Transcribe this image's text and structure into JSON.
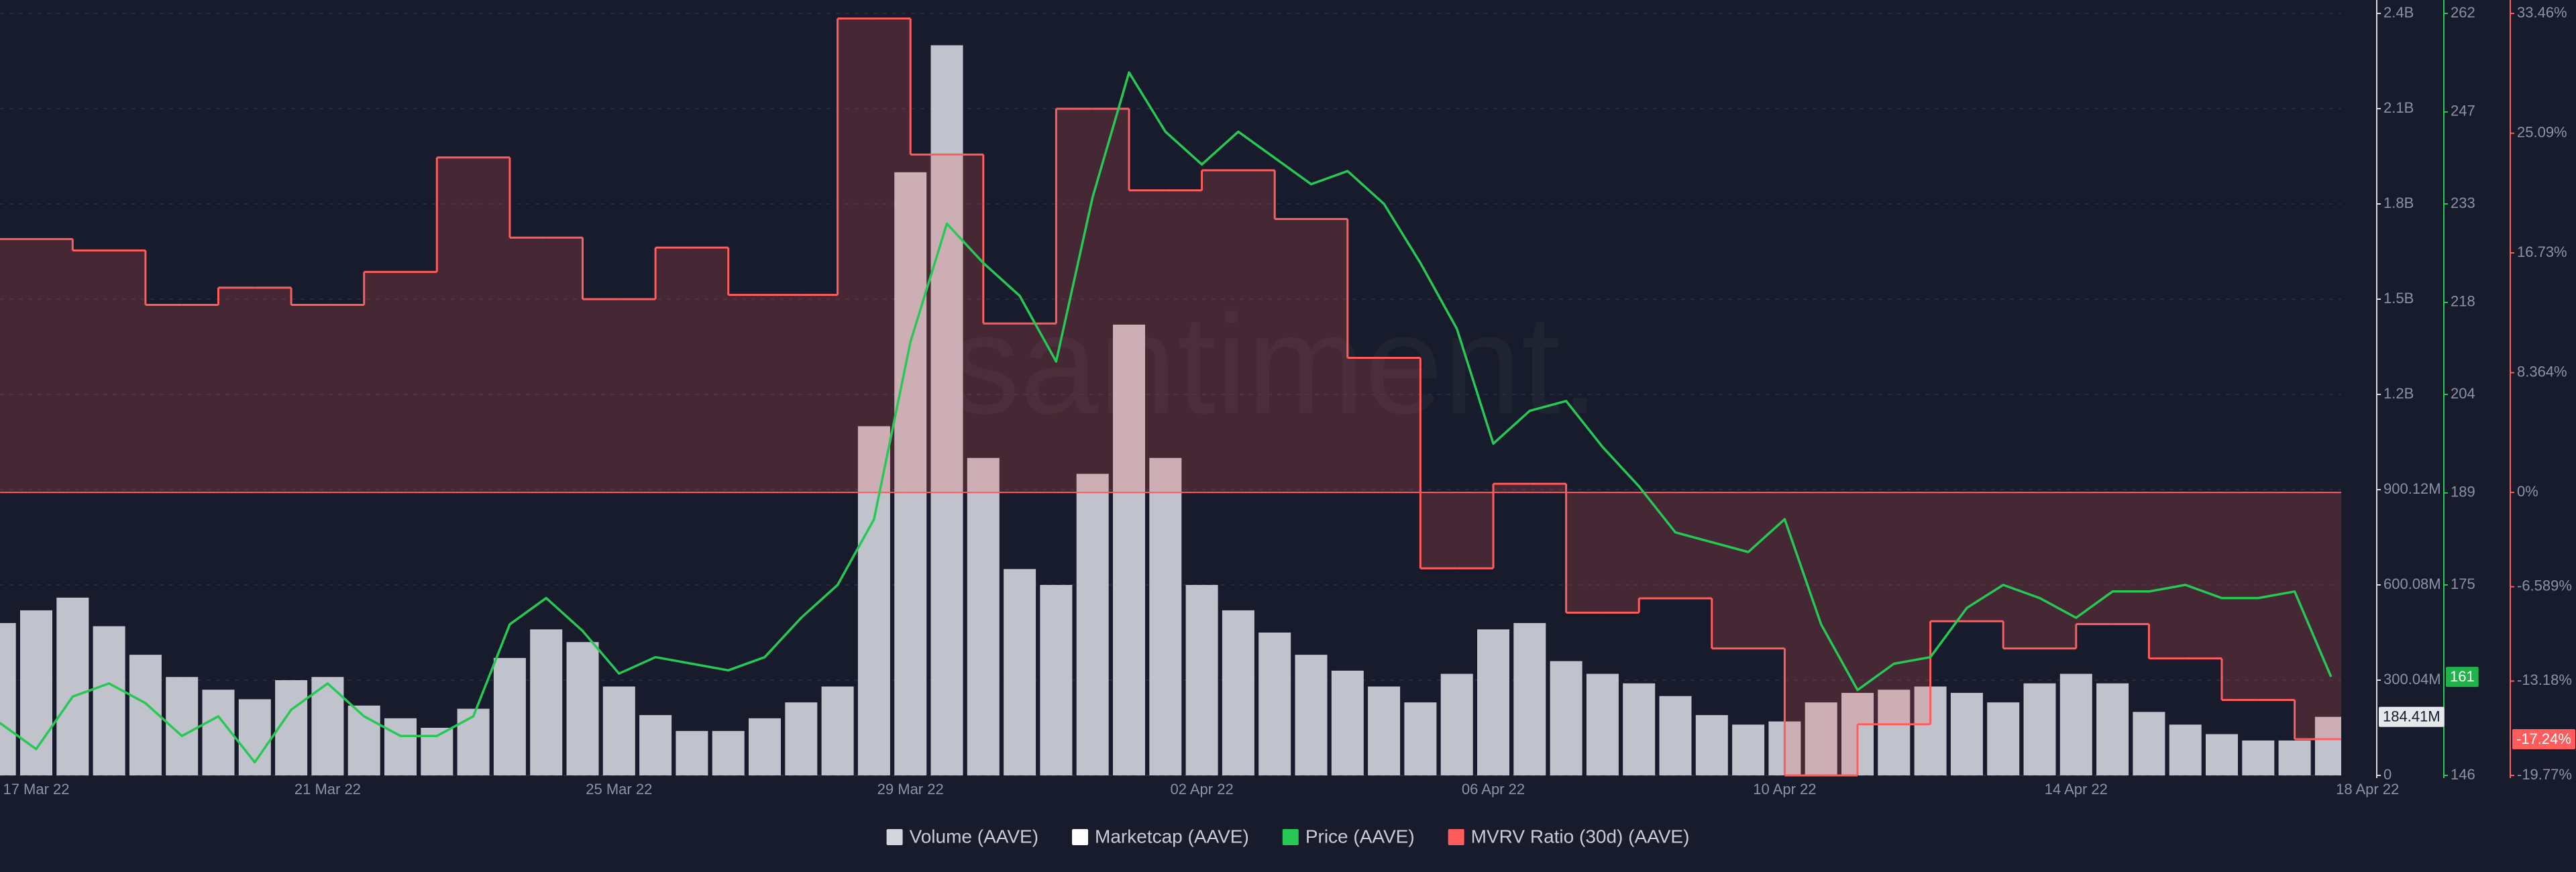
{
  "chart_data": {
    "type": "mixed",
    "watermark": "santiment.",
    "categories": [
      null,
      "17 Mar 22",
      null,
      null,
      null,
      null,
      null,
      null,
      null,
      "21 Mar 22",
      null,
      null,
      null,
      null,
      null,
      null,
      null,
      "25 Mar 22",
      null,
      null,
      null,
      null,
      null,
      null,
      null,
      "29 Mar 22",
      null,
      null,
      null,
      null,
      null,
      null,
      null,
      "02 Apr 22",
      null,
      null,
      null,
      null,
      null,
      null,
      null,
      "06 Apr 22",
      null,
      null,
      null,
      null,
      null,
      null,
      null,
      "10 Apr 22",
      null,
      null,
      null,
      null,
      null,
      null,
      null,
      "14 Apr 22",
      null,
      null,
      null,
      null,
      null,
      null,
      null,
      "18 Apr 22"
    ],
    "series": [
      {
        "name": "Volume (AAVE)",
        "type": "bar",
        "axis": "y",
        "color": "#d4d6de",
        "last_label": "184.41M",
        "values": [
          480000000,
          520000000,
          560000000,
          470000000,
          380000000,
          310000000,
          270000000,
          240000000,
          300000000,
          310000000,
          220000000,
          180000000,
          150000000,
          210000000,
          370000000,
          460000000,
          420000000,
          280000000,
          190000000,
          140000000,
          140000000,
          180000000,
          230000000,
          280000000,
          1100000000,
          1900000000,
          2300000000,
          1000000000,
          650000000,
          600000000,
          950000000,
          1420000000,
          1000000000,
          600000000,
          520000000,
          450000000,
          380000000,
          330000000,
          280000000,
          230000000,
          320000000,
          460000000,
          480000000,
          360000000,
          320000000,
          290000000,
          250000000,
          190000000,
          160000000,
          170000000,
          230000000,
          260000000,
          270000000,
          280000000,
          260000000,
          230000000,
          290000000,
          320000000,
          290000000,
          200000000,
          160000000,
          130000000,
          110000000,
          110000000,
          184410000,
          null
        ]
      },
      {
        "name": "Marketcap (AAVE)",
        "color": "#ffffff"
      },
      {
        "name": "Price (AAVE)",
        "type": "line",
        "axis": "y2",
        "color": "#26c953",
        "values": [
          154,
          150,
          158,
          160,
          157,
          152,
          155,
          148,
          156,
          160,
          155,
          152,
          152,
          155,
          169,
          173,
          168,
          161.5,
          164,
          163,
          162,
          164,
          170,
          175,
          185,
          212,
          230,
          224,
          219,
          209,
          234,
          253,
          244,
          239,
          244,
          240,
          236,
          238,
          233,
          224,
          214,
          196.5,
          201.5,
          203,
          196,
          190,
          183,
          181.5,
          180,
          185,
          169,
          159,
          163,
          164,
          171.5,
          175,
          173,
          170,
          174,
          174,
          175,
          173,
          173,
          174,
          161,
          null
        ]
      },
      {
        "name": "MVRV Ratio (30d) (AAVE)",
        "type": "step",
        "axis": "y3",
        "color": "#ff5c5c",
        "last_label": "-17.24%",
        "values": [
          17.7,
          17.7,
          16.9,
          16.9,
          13.1,
          13.1,
          14.3,
          14.3,
          13.1,
          13.1,
          15.4,
          15.4,
          23.4,
          23.4,
          17.8,
          17.8,
          13.5,
          13.5,
          17.1,
          17.1,
          13.8,
          13.8,
          13.8,
          33.1,
          33.1,
          23.6,
          23.6,
          11.8,
          11.8,
          26.8,
          26.8,
          21.1,
          21.1,
          22.5,
          22.5,
          19.1,
          19.1,
          9.4,
          9.4,
          -5.3,
          -5.3,
          0.6,
          0.6,
          -8.4,
          -8.4,
          -7.4,
          -7.4,
          -10.9,
          -10.9,
          -19.77,
          -19.77,
          -16.2,
          -16.2,
          -9,
          -9,
          -10.9,
          -10.9,
          -9.2,
          -9.2,
          -11.6,
          -11.6,
          -14.5,
          -14.5,
          -17.24,
          -17.24,
          null
        ]
      }
    ],
    "ylim": [
      0,
      2400320000
    ],
    "yticks": [
      0,
      {
        "value": 300040000,
        "label": "300.04M"
      },
      {
        "value": 600080000,
        "label": "600.08M"
      },
      {
        "value": 900120000,
        "label": "900.12M"
      },
      {
        "value": 1200160000,
        "label": "1.2B"
      },
      {
        "value": 1500200000,
        "label": "1.5B"
      },
      {
        "value": 1800240000,
        "label": "1.8B"
      },
      {
        "value": 2100280000,
        "label": "2.1B"
      },
      {
        "value": 2400320000,
        "label": "2.4B"
      }
    ],
    "y2lim": [
      146,
      262
    ],
    "y2ticks": [
      146,
      175,
      189,
      204,
      218,
      233,
      247,
      262
    ],
    "y3lim": [
      -19.77,
      33.46
    ],
    "y3ticks": [
      {
        "value": -19.77,
        "label": "-19.77%"
      },
      {
        "value": -13.18,
        "label": "-13.18%"
      },
      {
        "value": -6.589,
        "label": "-6.589%"
      },
      {
        "value": 0,
        "label": "0%"
      },
      {
        "value": 8.364,
        "label": "8.364%"
      },
      {
        "value": 16.73,
        "label": "16.73%"
      },
      {
        "value": 25.09,
        "label": "25.09%"
      },
      {
        "value": 33.46,
        "label": "33.46%"
      }
    ],
    "grid": true
  }
}
